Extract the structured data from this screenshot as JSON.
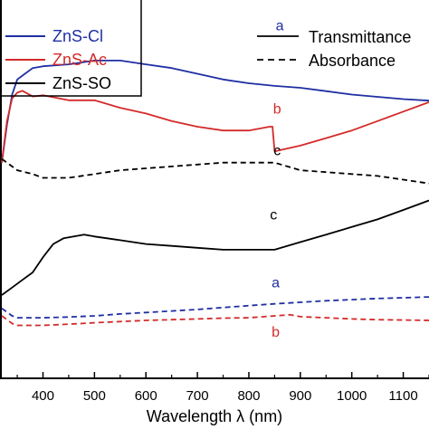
{
  "chart_data": {
    "type": "line",
    "xlabel": "Wavelength λ (nm)",
    "xlim": [
      320,
      1150
    ],
    "x_ticks": [
      400,
      500,
      600,
      700,
      800,
      900,
      1000,
      1100
    ],
    "ylim": [
      0,
      100
    ],
    "y_tick_labels_visible": false,
    "legend": {
      "placement": "top-left",
      "entries": [
        {
          "name": "ZnS-Cl",
          "color": "#1f2fa3"
        },
        {
          "name": "ZnS-Ac",
          "color": "#d42a2a"
        },
        {
          "name": "ZnS-SO",
          "color": "#000000"
        }
      ]
    },
    "style_legend": {
      "placement": "top-right",
      "entries": [
        {
          "name": "Transmittance",
          "dash": "solid"
        },
        {
          "name": "Absorbance",
          "dash": "dashed"
        }
      ]
    },
    "series": [
      {
        "sample": "ZnS-Cl",
        "kind": "Transmittance",
        "label": "a",
        "color": "#1f2fa3",
        "dash": "solid",
        "x": [
          320,
          330,
          340,
          350,
          360,
          380,
          400,
          450,
          500,
          550,
          600,
          650,
          700,
          750,
          800,
          850,
          900,
          950,
          1000,
          1050,
          1100,
          1150
        ],
        "y": [
          57,
          67,
          75,
          79,
          80,
          82,
          82.5,
          83,
          84,
          84,
          83,
          82,
          80.5,
          79,
          78,
          77.3,
          76.8,
          75.9,
          75,
          74.4,
          73.8,
          73.4
        ]
      },
      {
        "sample": "ZnS-Ac",
        "kind": "Transmittance",
        "label": "b",
        "color": "#d42a2a",
        "dash": "solid",
        "x": [
          320,
          330,
          340,
          350,
          360,
          380,
          400,
          450,
          500,
          550,
          600,
          650,
          700,
          750,
          800,
          840,
          846,
          850,
          900,
          950,
          1000,
          1050,
          1100,
          1150
        ],
        "y": [
          57,
          68,
          74,
          75.5,
          76,
          74.5,
          74.8,
          73.5,
          73.5,
          71.5,
          70,
          68,
          66.5,
          65.5,
          65.5,
          66.5,
          66.5,
          60,
          61.5,
          63.5,
          65.5,
          68,
          70.5,
          73
        ]
      },
      {
        "sample": "ZnS-SO",
        "kind": "Absorbance",
        "label": "c",
        "color": "#000000",
        "dash": "dashed",
        "x": [
          320,
          330,
          340,
          350,
          380,
          400,
          450,
          500,
          550,
          600,
          650,
          700,
          750,
          800,
          850,
          900,
          950,
          1000,
          1050,
          1100,
          1150
        ],
        "y": [
          58,
          57,
          56,
          55,
          54,
          53,
          53,
          54,
          55,
          55.5,
          56,
          56.5,
          57,
          57,
          57,
          55,
          54.5,
          54,
          53.5,
          52.5,
          51.5
        ]
      },
      {
        "sample": "ZnS-SO",
        "kind": "Transmittance",
        "label": "c",
        "color": "#000000",
        "dash": "solid",
        "x": [
          320,
          340,
          360,
          380,
          400,
          420,
          440,
          460,
          480,
          500,
          550,
          600,
          650,
          700,
          750,
          800,
          850,
          900,
          950,
          1000,
          1050,
          1100,
          1150
        ],
        "y": [
          22,
          24,
          26,
          28,
          32,
          35.5,
          37,
          37.5,
          38,
          37.5,
          36.5,
          35.5,
          35,
          34.5,
          34,
          34,
          34,
          36,
          38,
          40,
          42,
          44.5,
          47
        ]
      },
      {
        "sample": "ZnS-Cl",
        "kind": "Absorbance",
        "label": "a",
        "color": "#1f2fa3",
        "dash": "dashed",
        "x": [
          320,
          330,
          340,
          350,
          400,
          450,
          500,
          550,
          600,
          650,
          700,
          750,
          800,
          850,
          900,
          950,
          1000,
          1050,
          1100,
          1150
        ],
        "y": [
          18.5,
          17.5,
          16.5,
          16,
          16,
          16.2,
          16.5,
          17,
          17.4,
          17.8,
          18.2,
          18.7,
          19.2,
          19.7,
          20.1,
          20.5,
          20.8,
          21.1,
          21.3,
          21.5
        ]
      },
      {
        "sample": "ZnS-Ac",
        "kind": "Absorbance",
        "label": "b",
        "color": "#d42a2a",
        "dash": "dashed",
        "x": [
          320,
          330,
          340,
          350,
          400,
          450,
          500,
          550,
          600,
          650,
          700,
          750,
          800,
          850,
          880,
          900,
          950,
          1000,
          1050,
          1100,
          1150
        ],
        "y": [
          16.5,
          15.5,
          14.5,
          14,
          14,
          14.3,
          14.7,
          15,
          15.3,
          15.5,
          15.7,
          15.9,
          16,
          16.5,
          16.8,
          16.3,
          16,
          15.7,
          15.5,
          15.4,
          15.3
        ]
      }
    ]
  }
}
